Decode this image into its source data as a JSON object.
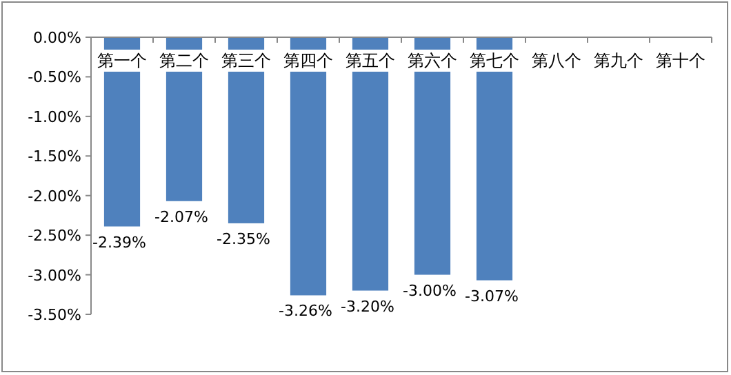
{
  "chart_data": {
    "type": "bar",
    "categories": [
      "第一个",
      "第二个",
      "第三个",
      "第四个",
      "第五个",
      "第六个",
      "第七个",
      "第八个",
      "第九个",
      "第十个"
    ],
    "values": [
      -2.39,
      -2.07,
      -2.35,
      -3.26,
      -3.2,
      -3.0,
      -3.07,
      null,
      null,
      null
    ],
    "value_labels": [
      "-2.39%",
      "-2.07%",
      "-2.35%",
      "-3.26%",
      "-3.20%",
      "-3.00%",
      "-3.07%",
      null,
      null,
      null
    ],
    "color": "#4f81bd",
    "ylim": [
      -3.5,
      0
    ],
    "yticks": [
      {
        "value": 0,
        "label": "0.00%"
      },
      {
        "value": -0.5,
        "label": "-0.50%"
      },
      {
        "value": -1,
        "label": "-1.00%"
      },
      {
        "value": -1.5,
        "label": "-1.50%"
      },
      {
        "value": -2,
        "label": "-2.00%"
      },
      {
        "value": -2.5,
        "label": "-2.50%"
      },
      {
        "value": -3,
        "label": "-3.00%"
      },
      {
        "value": -3.5,
        "label": "-3.50%"
      }
    ],
    "grid": false
  }
}
